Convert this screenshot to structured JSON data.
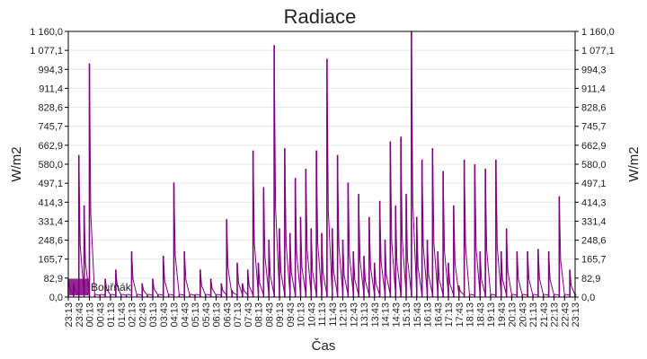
{
  "chart_data": {
    "type": "line",
    "title": "Radiace",
    "xlabel": "Čas",
    "ylabel": "W/m2",
    "ylabel_right": "W/m2",
    "ylim": [
      0,
      1160
    ],
    "grid": "horizontal",
    "legend_placement": "bottom-left",
    "color": "#800080",
    "y_ticks": [
      "0,0",
      "82,9",
      "165,7",
      "248,6",
      "331,4",
      "414,3",
      "497,1",
      "580,0",
      "662,9",
      "745,7",
      "828,6",
      "911,4",
      "994,3",
      "1 077,1",
      "1 160,0"
    ],
    "x_ticks": [
      "23:13",
      "23:43",
      "00:13",
      "00:43",
      "01:13",
      "01:43",
      "02:13",
      "02:43",
      "03:13",
      "03:43",
      "04:13",
      "04:43",
      "05:13",
      "05:43",
      "06:13",
      "06:43",
      "07:13",
      "07:43",
      "08:13",
      "08:43",
      "09:13",
      "09:43",
      "10:13",
      "10:43",
      "11:13",
      "11:43",
      "12:13",
      "12:43",
      "13:13",
      "13:43",
      "14:13",
      "14:43",
      "15:13",
      "15:43",
      "16:13",
      "16:43",
      "17:13",
      "17:43",
      "18:13",
      "18:43",
      "19:13",
      "19:43",
      "20:13",
      "20:43",
      "21:13",
      "21:43",
      "22:13",
      "22:43",
      "23:13"
    ],
    "series": [
      {
        "name": "Bouřňák",
        "x": [
          "23:13",
          "23:28",
          "23:43",
          "23:58",
          "00:13",
          "00:28",
          "00:43",
          "00:58",
          "01:13",
          "01:28",
          "01:43",
          "01:58",
          "02:13",
          "02:28",
          "02:43",
          "02:58",
          "03:13",
          "03:28",
          "03:43",
          "03:58",
          "04:13",
          "04:28",
          "04:43",
          "04:58",
          "05:13",
          "05:28",
          "05:43",
          "05:58",
          "06:13",
          "06:28",
          "06:43",
          "06:58",
          "07:13",
          "07:28",
          "07:43",
          "07:58",
          "08:13",
          "08:28",
          "08:43",
          "08:58",
          "09:13",
          "09:28",
          "09:43",
          "09:58",
          "10:13",
          "10:28",
          "10:43",
          "10:58",
          "11:13",
          "11:28",
          "11:43",
          "11:58",
          "12:13",
          "12:28",
          "12:43",
          "12:58",
          "13:13",
          "13:28",
          "13:43",
          "13:58",
          "14:13",
          "14:28",
          "14:43",
          "14:58",
          "15:13",
          "15:28",
          "15:43",
          "15:58",
          "16:13",
          "16:28",
          "16:43",
          "16:58",
          "17:13",
          "17:28",
          "17:43",
          "17:58",
          "18:13",
          "18:28",
          "18:43",
          "18:58",
          "19:13",
          "19:28",
          "19:43",
          "19:58",
          "20:13",
          "20:28",
          "20:43",
          "20:58",
          "21:13",
          "21:28",
          "21:43",
          "21:58",
          "22:13",
          "22:28",
          "22:43",
          "22:58",
          "23:13"
        ],
        "values": [
          80,
          60,
          620,
          400,
          1020,
          10,
          10,
          80,
          10,
          120,
          10,
          10,
          200,
          10,
          60,
          10,
          80,
          10,
          180,
          10,
          500,
          10,
          200,
          10,
          10,
          120,
          10,
          80,
          10,
          60,
          340,
          30,
          150,
          60,
          120,
          640,
          150,
          480,
          250,
          1100,
          300,
          650,
          280,
          520,
          350,
          560,
          300,
          640,
          280,
          1040,
          300,
          620,
          250,
          500,
          200,
          450,
          180,
          350,
          150,
          420,
          250,
          680,
          400,
          700,
          450,
          1160,
          350,
          600,
          250,
          650,
          200,
          550,
          150,
          400,
          50,
          600,
          10,
          580,
          200,
          560,
          10,
          600,
          200,
          300,
          10,
          200,
          10,
          200,
          10,
          210,
          10,
          200,
          10,
          440,
          10,
          120,
          10
        ]
      }
    ]
  }
}
